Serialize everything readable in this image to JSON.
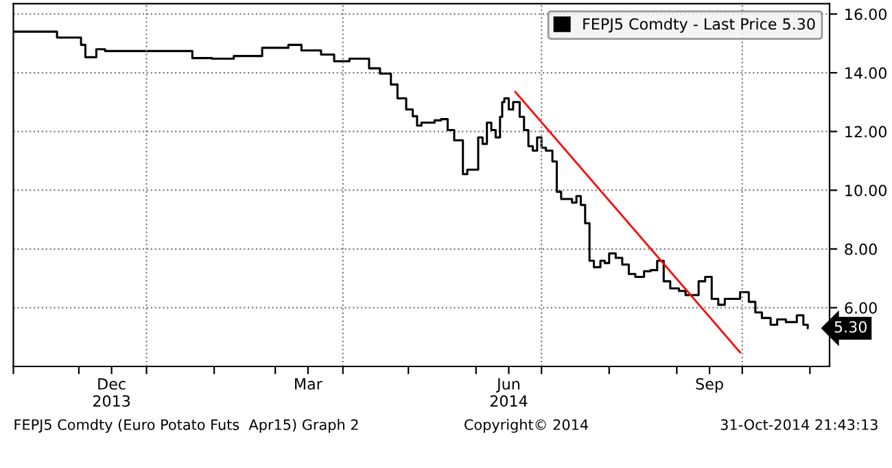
{
  "chart_data": {
    "type": "step",
    "x": [
      "2013-11-01",
      "2013-11-21",
      "2013-12-02",
      "2013-12-04",
      "2013-12-09",
      "2013-12-13",
      "2014-01-22",
      "2014-01-31",
      "2014-02-10",
      "2014-02-23",
      "2014-03-07",
      "2014-03-13",
      "2014-03-22",
      "2014-03-28",
      "2014-04-04",
      "2014-04-13",
      "2014-04-18",
      "2014-04-23",
      "2014-04-26",
      "2014-04-30",
      "2014-05-03",
      "2014-05-05",
      "2014-05-07",
      "2014-05-13",
      "2014-05-16",
      "2014-05-19",
      "2014-05-22",
      "2014-05-26",
      "2014-05-28",
      "2014-06-02",
      "2014-06-04",
      "2014-06-06",
      "2014-06-08",
      "2014-06-10",
      "2014-06-12",
      "2014-06-13",
      "2014-06-14",
      "2014-06-16",
      "2014-06-18",
      "2014-06-21",
      "2014-06-23",
      "2014-06-25",
      "2014-06-27",
      "2014-06-29",
      "2014-07-01",
      "2014-07-03",
      "2014-07-06",
      "2014-07-08",
      "2014-07-10",
      "2014-07-15",
      "2014-07-17",
      "2014-07-19",
      "2014-07-21",
      "2014-07-23",
      "2014-07-25",
      "2014-07-28",
      "2014-07-30",
      "2014-08-01",
      "2014-08-04",
      "2014-08-07",
      "2014-08-10",
      "2014-08-13",
      "2014-08-17",
      "2014-08-20",
      "2014-08-23",
      "2014-08-26",
      "2014-08-29",
      "2014-09-02",
      "2014-09-05",
      "2014-09-11",
      "2014-09-14",
      "2014-09-17",
      "2014-09-20",
      "2014-09-23",
      "2014-09-30",
      "2014-10-04",
      "2014-10-07",
      "2014-10-10",
      "2014-10-14",
      "2014-10-17",
      "2014-10-21",
      "2014-10-26",
      "2014-10-29",
      "2014-10-31"
    ],
    "series": [
      {
        "name": "FEPJ5 Comdty - Last Price 5.30",
        "color": "#000000",
        "values": [
          15.4,
          15.2,
          14.95,
          14.53,
          14.8,
          14.74,
          14.5,
          14.48,
          14.57,
          14.85,
          14.95,
          14.76,
          14.62,
          14.39,
          14.48,
          14.15,
          13.97,
          13.6,
          13.13,
          12.75,
          12.52,
          12.2,
          12.3,
          12.38,
          12.42,
          12.05,
          11.7,
          10.55,
          10.7,
          11.8,
          11.58,
          12.3,
          12.05,
          11.8,
          12.5,
          13.0,
          13.13,
          12.75,
          13.0,
          12.5,
          12.05,
          11.5,
          11.35,
          11.8,
          11.45,
          11.35,
          10.98,
          9.95,
          9.7,
          9.58,
          9.8,
          9.5,
          8.88,
          7.6,
          7.38,
          7.6,
          7.52,
          7.85,
          7.7,
          7.47,
          7.15,
          7.05,
          7.24,
          7.28,
          7.6,
          6.9,
          6.66,
          6.57,
          6.43,
          6.9,
          7.05,
          6.3,
          6.1,
          6.3,
          6.53,
          6.2,
          5.84,
          5.65,
          5.42,
          5.6,
          5.51,
          5.74,
          5.42,
          5.3
        ]
      },
      {
        "type": "line",
        "color": "#ff0000",
        "x": [
          "2014-06-19",
          "2014-09-30"
        ],
        "values": [
          13.35,
          4.48
        ]
      }
    ],
    "xlim": [
      "2013-11-01",
      "2014-11-10"
    ],
    "xticks": [
      {
        "value": "2013-11-01",
        "label": null
      },
      {
        "value": "2013-12-01",
        "label": null
      },
      {
        "value": "2013-12-16",
        "label": "Dec\n2013"
      },
      {
        "value": "2014-01-01",
        "label": null
      },
      {
        "value": "2014-02-01",
        "label": null
      },
      {
        "value": "2014-03-01",
        "label": null
      },
      {
        "value": "2014-03-16",
        "label": "Mar"
      },
      {
        "value": "2014-04-01",
        "label": null
      },
      {
        "value": "2014-05-01",
        "label": null
      },
      {
        "value": "2014-06-01",
        "label": null
      },
      {
        "value": "2014-06-16",
        "label": "Jun\n2014"
      },
      {
        "value": "2014-07-01",
        "label": null
      },
      {
        "value": "2014-08-01",
        "label": null
      },
      {
        "value": "2014-09-01",
        "label": null
      },
      {
        "value": "2014-09-16",
        "label": "Sep"
      },
      {
        "value": "2014-10-01",
        "label": null
      },
      {
        "value": "2014-11-01",
        "label": null
      }
    ],
    "ylim": [
      4,
      16.35
    ],
    "yticks": [
      {
        "value": 6,
        "label": "6.00"
      },
      {
        "value": 8,
        "label": "8.00"
      },
      {
        "value": 10,
        "label": "10.00"
      },
      {
        "value": 12,
        "label": "12.00"
      },
      {
        "value": 14,
        "label": "14.00"
      },
      {
        "value": 16,
        "label": "16.00"
      }
    ],
    "ref_lines": [
      {
        "axis": "x",
        "value": "2014-01-01",
        "color": "#808080",
        "line_style": "dotted"
      },
      {
        "axis": "x",
        "value": "2014-04-01",
        "color": "#808080",
        "line_style": "dotted"
      },
      {
        "axis": "x",
        "value": "2014-07-01",
        "color": "#808080",
        "line_style": "dotted"
      },
      {
        "axis": "x",
        "value": "2014-10-01",
        "color": "#808080",
        "line_style": "dotted"
      }
    ],
    "grid": "y",
    "legend": "top right",
    "annotations": [
      {
        "text": "5.30",
        "x": "2014-10-31",
        "y": 5.3
      },
      "FEPJ5 Comdty (Euro Potato Futs  Apr15) Graph 2",
      "Copyright© 2014",
      "31-Oct-2014 21:43:13"
    ]
  }
}
